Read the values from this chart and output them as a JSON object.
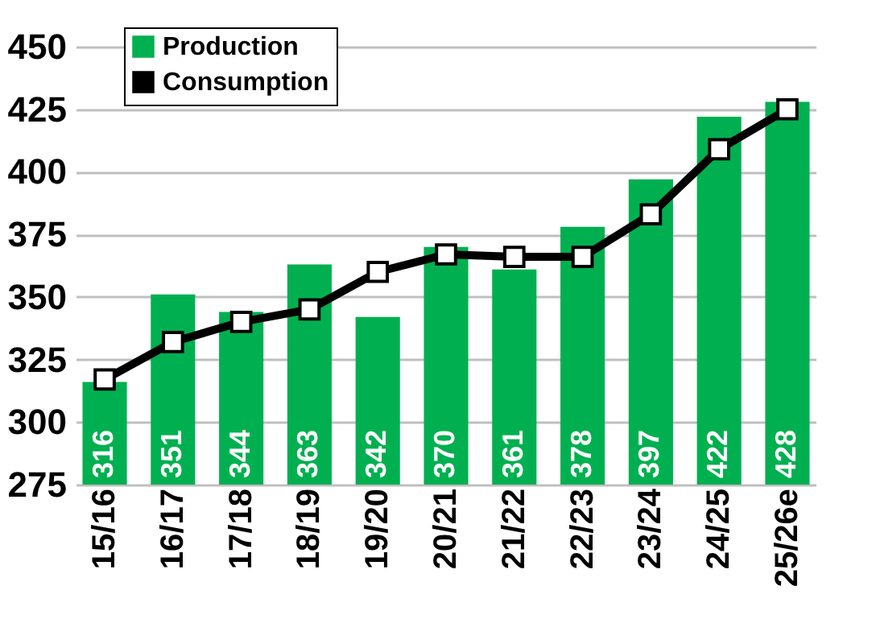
{
  "chart_data": {
    "type": "bar",
    "categories": [
      "15/16",
      "16/17",
      "17/18",
      "18/19",
      "19/20",
      "20/21",
      "21/22",
      "22/23",
      "23/24",
      "24/25",
      "25/26e"
    ],
    "series": [
      {
        "name": "Production",
        "color": "#00b050",
        "values": [
          316,
          351,
          344,
          363,
          342,
          370,
          361,
          378,
          397,
          422,
          428
        ],
        "value_labels": [
          "316",
          "351",
          "344",
          "363",
          "342",
          "370",
          "361",
          "378",
          "397",
          "422",
          "428"
        ]
      },
      {
        "name": "Consumption",
        "type": "line",
        "color": "#000000",
        "marker": "square",
        "values": [
          317,
          332,
          340,
          345,
          360,
          367,
          366,
          366,
          383,
          409,
          425
        ]
      }
    ],
    "ylim": [
      275,
      450
    ],
    "yticks": [
      275,
      300,
      325,
      350,
      375,
      400,
      425,
      450
    ],
    "grid": "y",
    "legend": "top"
  }
}
